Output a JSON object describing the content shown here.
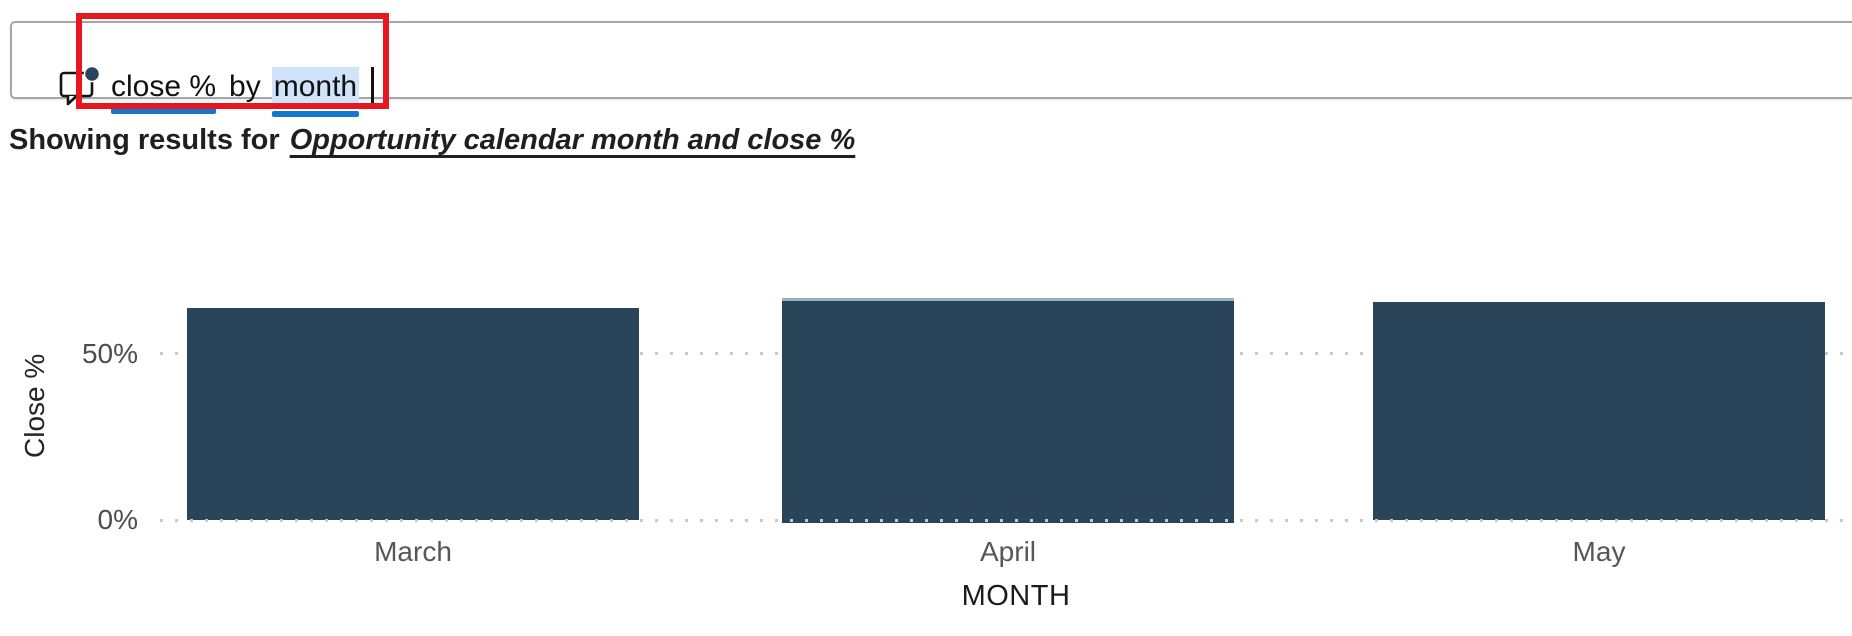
{
  "search": {
    "icon": "qna-comment-bubble-with-dot",
    "query_terms": [
      {
        "text": "close %",
        "underlined": true,
        "selected": false
      },
      {
        "text": "by",
        "underlined": false,
        "selected": false
      },
      {
        "text": "month",
        "underlined": true,
        "selected": true
      }
    ]
  },
  "results_line": {
    "prefix": "Showing results for",
    "interpretation": "Opportunity calendar month and close %"
  },
  "annotation": {
    "shape": "rectangle",
    "color": "#e8171f"
  },
  "colors": {
    "term_underline": "#1476cc",
    "term_selection": "#cfe4f8",
    "bar": "#2a4459",
    "bar_hover_edge": "#9cb0bf",
    "gridline": "#c9c9c9",
    "axis_tick_text": "#4d4d4d",
    "category_text": "#575757"
  },
  "chart_data": {
    "type": "bar",
    "categories": [
      "March",
      "April",
      "May"
    ],
    "values": [
      63,
      66,
      65
    ],
    "value_unit": "%",
    "title": "",
    "xlabel": "MONTH",
    "ylabel": "Close %",
    "yticks": [
      "0%",
      "50%"
    ],
    "ylim": [
      0,
      70
    ],
    "grid": "dotted-horizontal-at-0-and-50",
    "legend": "none",
    "bar_color": "#2a4459"
  }
}
